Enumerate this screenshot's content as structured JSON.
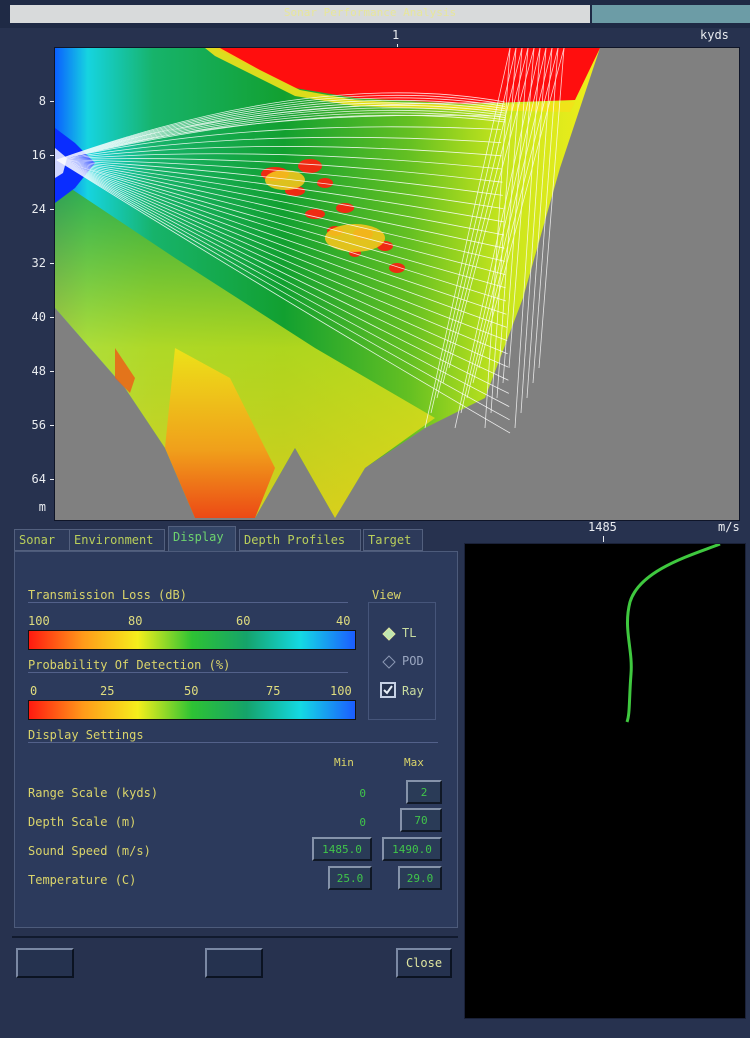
{
  "window": {
    "title": "Sonar Performance Analysis"
  },
  "top_axis": {
    "tick": "1",
    "unit": "kyds"
  },
  "depth_axis": {
    "ticks": [
      "8",
      "16",
      "24",
      "32",
      "40",
      "48",
      "56",
      "64"
    ],
    "unit": "m"
  },
  "speed_axis": {
    "tick": "1485",
    "unit": "m/s"
  },
  "tabs": [
    "Sonar",
    "Environment",
    "Display",
    "Depth Profiles",
    "Target"
  ],
  "active_tab": "Display",
  "transmission_loss": {
    "title": "Transmission Loss (dB)",
    "ticks": [
      "100",
      "80",
      "60",
      "40"
    ]
  },
  "pod": {
    "title": "Probability Of Detection (%)",
    "ticks": [
      "0",
      "25",
      "50",
      "75",
      "100"
    ]
  },
  "view": {
    "title": "View",
    "options": [
      {
        "label": "TL",
        "selected": true
      },
      {
        "label": "POD",
        "selected": false
      }
    ],
    "ray": {
      "label": "Ray",
      "checked": true
    }
  },
  "display_settings": {
    "title": "Display Settings",
    "min_label": "Min",
    "max_label": "Max",
    "rows": [
      {
        "label": "Range Scale (kyds)",
        "min": "0",
        "max": "2"
      },
      {
        "label": "Depth Scale (m)",
        "min": "0",
        "max": "70"
      },
      {
        "label": "Sound Speed (m/s)",
        "min": "1485.0",
        "max": "1490.0"
      },
      {
        "label": "Temperature (C)",
        "min": "25.0",
        "max": "29.0"
      }
    ]
  },
  "buttons": {
    "left": "",
    "middle": "",
    "close": "Close"
  },
  "colors": {
    "panel": "#2c3a5c",
    "profile_line": "#3fc83f",
    "accent_text": "#dad46a"
  }
}
